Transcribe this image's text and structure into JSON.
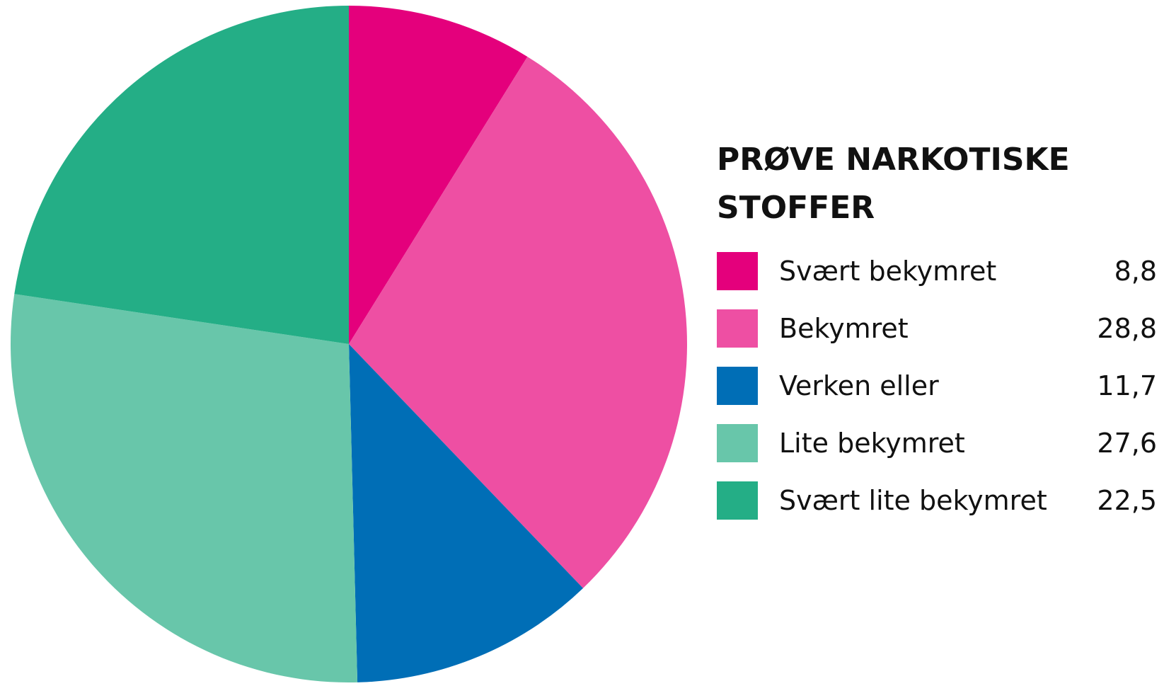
{
  "chart_data": {
    "type": "pie",
    "title": "PRØVE NARKOTISKE STOFFER",
    "categories": [
      "Svært bekymret",
      "Bekymret",
      "Verken eller",
      "Lite bekymret",
      "Svært lite bekymret"
    ],
    "values": [
      8.8,
      28.8,
      11.7,
      27.6,
      22.5
    ],
    "value_labels": [
      "8,8",
      "28,8",
      "11,7",
      "27,6",
      "22,5"
    ],
    "colors": [
      "#e4007c",
      "#ee4fa3",
      "#006eb6",
      "#68c6aa",
      "#24ae86"
    ]
  }
}
